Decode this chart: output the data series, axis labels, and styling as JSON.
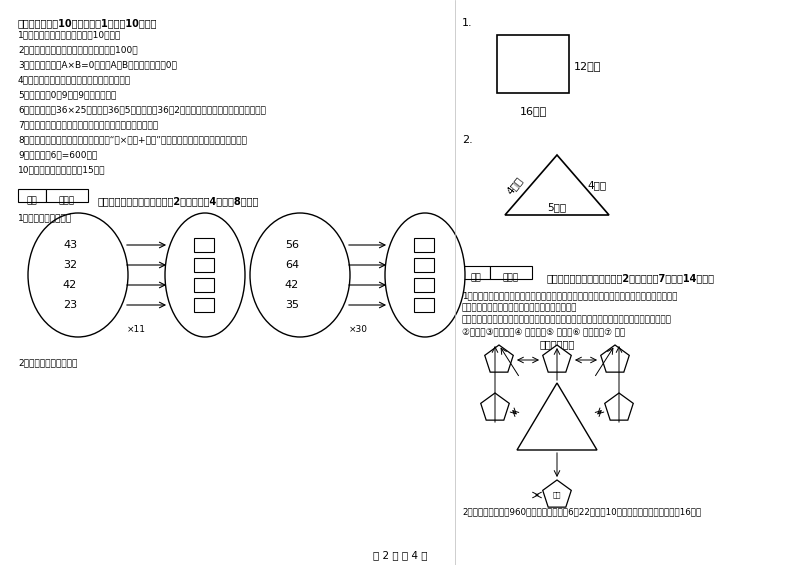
{
  "page_bg": "#ffffff",
  "left_section": {
    "title3": "三、判断题（內10小题，每题1分，內10分）。",
    "items": [
      "1．（　　）小明家客厅面积是10公顿。",
      "2．（　　）两个面积单位之间的进率是100。",
      "3．（　　）如果A×B=0，那么A和B中至少有一个是0。",
      "4．（　　）小明面对着东方时，背对着西方。",
      "5．（　　）0．9里有9个十分之一。",
      "6．（　　）计36×25时，先把36和5相乘，再把36和2相乘，最后把两次乘积的结果相加。",
      "7．（　　）所有的大月都是单月，所有的小月都是双月。",
      "8．（　　）有余数除法的验算方法是“商×除数+余数”，看得到的结果是否与被除数相等。",
      "9．（　　）6分=600秒。",
      "10．（　　）李老师身高15米。"
    ],
    "section4_title": "四、看清题目，细心计算（列2小题，每题4分，列8分）。",
    "sub1": "1、算一算，填一填。",
    "left_oval_nums": [
      "23",
      "42",
      "32",
      "43"
    ],
    "left_op": "×11",
    "right_oval_nums": [
      "35",
      "42",
      "64",
      "56"
    ],
    "right_op": "×30",
    "sub2": "2、求下面图形的周长。"
  },
  "right_section": {
    "q1_label": "1.",
    "rect_w_label": "12厘米",
    "rect_h_label": "16厘米",
    "q2_label": "2.",
    "tri_left_label": "4分米",
    "tri_right_label": "4分米",
    "tri_bottom_label": "5分米",
    "section5_title": "五、认真思考，综合能力（列2小题，每题7分，內14分）。",
    "zoo_text1": "1．走进动物园大门，正北面是狮子山和熊猫馆，狮子山的东侧是飞禽馆，西侧是猴园，大象",
    "zoo_text2": "馆和鱼馆的场地分别在动物园的东北角和西北角。",
    "zoo_text3": "根据小强的描述，请你把这些动物场馆所在的位置，在动物园的导游图上用序号表示出来。",
    "zoo_labels": "②狮山　③熊猫馆　④ 飞禽馆　⑤ 猴园　⑥ 大象馆　⑦ 鱼馆",
    "zoo_map_title": "动物园导游图",
    "q2_text": "2．甲乙两城铁路长960千米，一列客车于6月22日上午10时从甲城开往乙城，当日晁16时到"
  },
  "footer": "第 2 页 共 4 页",
  "score_label": "得分",
  "reviewer_label": "评卷人"
}
